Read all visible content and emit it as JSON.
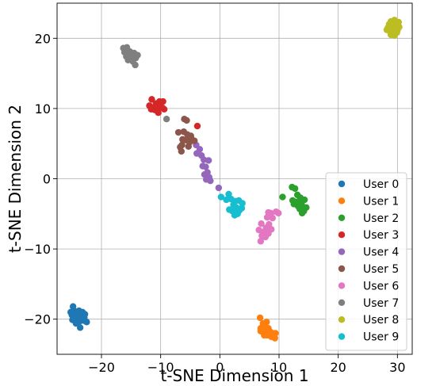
{
  "chart_data": {
    "type": "scatter",
    "xlabel": "t-SNE Dimension 1",
    "ylabel": "t-SNE Dimension 2",
    "xlim": [
      -27.5,
      32.5
    ],
    "ylim": [
      -25,
      25
    ],
    "xticks": [
      -20,
      -10,
      0,
      10,
      20,
      30
    ],
    "yticks": [
      -20,
      -10,
      0,
      10,
      20
    ],
    "xtick_labels": [
      "−20",
      "−10",
      "0",
      "10",
      "20",
      "30"
    ],
    "ytick_labels": [
      "−20",
      "−10",
      "0",
      "10",
      "20"
    ],
    "grid": true,
    "legend_position": "lower-right",
    "series": [
      {
        "name": "User 0",
        "color": "#1f77b4",
        "points": [
          [
            -24.8,
            -18.2
          ],
          [
            -24.5,
            -18.9
          ],
          [
            -25.0,
            -19.4
          ],
          [
            -24.2,
            -19.1
          ],
          [
            -23.8,
            -18.8
          ],
          [
            -23.2,
            -19.0
          ],
          [
            -22.8,
            -19.3
          ],
          [
            -24.6,
            -19.8
          ],
          [
            -24.0,
            -20.0
          ],
          [
            -23.4,
            -19.6
          ],
          [
            -23.0,
            -20.2
          ],
          [
            -22.5,
            -20.4
          ],
          [
            -24.9,
            -20.1
          ],
          [
            -24.3,
            -20.6
          ],
          [
            -23.7,
            -20.3
          ],
          [
            -23.6,
            -21.2
          ],
          [
            -22.9,
            -19.8
          ],
          [
            -25.2,
            -19.0
          ]
        ]
      },
      {
        "name": "User 1",
        "color": "#ff7f0e",
        "points": [
          [
            6.8,
            -19.8
          ],
          [
            7.3,
            -20.6
          ],
          [
            7.9,
            -20.4
          ],
          [
            6.9,
            -21.3
          ],
          [
            7.6,
            -21.0
          ],
          [
            8.2,
            -21.3
          ],
          [
            7.2,
            -21.8
          ],
          [
            7.8,
            -21.7
          ],
          [
            8.5,
            -21.8
          ],
          [
            8.9,
            -22.0
          ],
          [
            9.4,
            -22.0
          ],
          [
            8.0,
            -22.3
          ],
          [
            8.7,
            -22.5
          ],
          [
            9.3,
            -22.7
          ],
          [
            7.5,
            -22.3
          ],
          [
            6.9,
            -21.7
          ]
        ]
      },
      {
        "name": "User 2",
        "color": "#2ca02c",
        "points": [
          [
            10.6,
            -2.6
          ],
          [
            12.2,
            -1.2
          ],
          [
            12.7,
            -1.4
          ],
          [
            13.1,
            -2.3
          ],
          [
            13.6,
            -2.7
          ],
          [
            12.3,
            -3.1
          ],
          [
            12.9,
            -3.3
          ],
          [
            13.8,
            -3.5
          ],
          [
            14.3,
            -3.0
          ],
          [
            12.5,
            -3.6
          ],
          [
            13.2,
            -3.9
          ],
          [
            14.0,
            -4.0
          ],
          [
            14.6,
            -4.1
          ],
          [
            13.5,
            -4.3
          ],
          [
            14.2,
            -4.6
          ],
          [
            13.9,
            -4.9
          ]
        ]
      },
      {
        "name": "User 3",
        "color": "#d62728",
        "points": [
          [
            -11.5,
            11.3
          ],
          [
            -11.9,
            10.4
          ],
          [
            -11.3,
            10.1
          ],
          [
            -10.8,
            10.7
          ],
          [
            -10.2,
            11.0
          ],
          [
            -9.6,
            11.0
          ],
          [
            -11.0,
            9.8
          ],
          [
            -10.6,
            9.7
          ],
          [
            -10.1,
            10.4
          ],
          [
            -9.7,
            10.1
          ],
          [
            -9.4,
            9.9
          ],
          [
            -10.9,
            10.2
          ],
          [
            -10.4,
            9.4
          ],
          [
            -11.6,
            9.9
          ],
          [
            -3.8,
            7.5
          ]
        ]
      },
      {
        "name": "User 4",
        "color": "#9467bd",
        "points": [
          [
            -4.0,
            4.8
          ],
          [
            -3.4,
            4.2
          ],
          [
            -3.9,
            3.6
          ],
          [
            -3.1,
            3.3
          ],
          [
            -2.7,
            2.7
          ],
          [
            -1.9,
            2.6
          ],
          [
            -2.9,
            1.8
          ],
          [
            -2.4,
            1.7
          ],
          [
            -2.1,
            0.9
          ],
          [
            -2.6,
            0.6
          ],
          [
            -1.8,
            0.2
          ],
          [
            -2.3,
            -0.1
          ],
          [
            -1.6,
            -0.3
          ],
          [
            -0.2,
            -1.3
          ]
        ]
      },
      {
        "name": "User 5",
        "color": "#8c564b",
        "points": [
          [
            -6.0,
            8.5
          ],
          [
            -5.6,
            8.3
          ],
          [
            -7.0,
            6.6
          ],
          [
            -6.1,
            6.7
          ],
          [
            -5.5,
            6.3
          ],
          [
            -4.9,
            6.1
          ],
          [
            -6.3,
            5.6
          ],
          [
            -5.7,
            5.5
          ],
          [
            -4.8,
            5.7
          ],
          [
            -5.1,
            5.2
          ],
          [
            -4.3,
            5.4
          ],
          [
            -6.4,
            4.8
          ],
          [
            -5.3,
            4.6
          ],
          [
            -6.5,
            3.9
          ],
          [
            -6.7,
            4.5
          ]
        ]
      },
      {
        "name": "User 6",
        "color": "#e377c2",
        "points": [
          [
            8.2,
            -4.8
          ],
          [
            8.6,
            -4.9
          ],
          [
            9.5,
            -4.7
          ],
          [
            9.9,
            -4.9
          ],
          [
            8.0,
            -5.5
          ],
          [
            8.9,
            -5.6
          ],
          [
            7.0,
            -6.4
          ],
          [
            8.3,
            -6.5
          ],
          [
            7.8,
            -7.0
          ],
          [
            8.7,
            -7.2
          ],
          [
            6.6,
            -7.3
          ],
          [
            7.3,
            -7.6
          ],
          [
            8.2,
            -7.8
          ],
          [
            7.1,
            -8.1
          ],
          [
            7.7,
            -8.3
          ],
          [
            6.9,
            -8.9
          ]
        ]
      },
      {
        "name": "User 7",
        "color": "#7f7f7f",
        "points": [
          [
            -16.3,
            18.6
          ],
          [
            -15.7,
            18.7
          ],
          [
            -16.1,
            18.0
          ],
          [
            -15.2,
            18.1
          ],
          [
            -14.5,
            17.9
          ],
          [
            -13.9,
            17.6
          ],
          [
            -15.8,
            17.4
          ],
          [
            -15.0,
            17.5
          ],
          [
            -14.2,
            17.2
          ],
          [
            -15.5,
            16.9
          ],
          [
            -14.7,
            16.7
          ],
          [
            -14.3,
            16.2
          ],
          [
            -9.0,
            8.5
          ]
        ]
      },
      {
        "name": "User 8",
        "color": "#bcbd22",
        "points": [
          [
            28.9,
            22.4
          ],
          [
            29.5,
            22.6
          ],
          [
            30.2,
            22.3
          ],
          [
            28.6,
            22.0
          ],
          [
            29.2,
            21.9
          ],
          [
            29.9,
            21.8
          ],
          [
            28.4,
            21.5
          ],
          [
            29.0,
            21.4
          ],
          [
            29.7,
            21.4
          ],
          [
            30.3,
            21.6
          ],
          [
            28.7,
            21.0
          ],
          [
            29.3,
            20.9
          ],
          [
            29.9,
            20.8
          ],
          [
            28.9,
            20.5
          ],
          [
            29.5,
            20.4
          ],
          [
            28.2,
            21.2
          ],
          [
            30.0,
            21.1
          ]
        ]
      },
      {
        "name": "User 9",
        "color": "#17becf",
        "points": [
          [
            0.2,
            -2.6
          ],
          [
            1.5,
            -2.2
          ],
          [
            1.9,
            -2.9
          ],
          [
            1.1,
            -3.0
          ],
          [
            2.6,
            -3.2
          ],
          [
            3.2,
            -3.1
          ],
          [
            3.8,
            -3.5
          ],
          [
            2.3,
            -3.7
          ],
          [
            2.8,
            -4.1
          ],
          [
            1.6,
            -4.4
          ],
          [
            2.1,
            -4.6
          ],
          [
            3.3,
            -4.5
          ],
          [
            3.7,
            -4.2
          ],
          [
            2.5,
            -5.2
          ],
          [
            3.0,
            -5.0
          ],
          [
            2.9,
            -4.3
          ]
        ]
      }
    ]
  }
}
